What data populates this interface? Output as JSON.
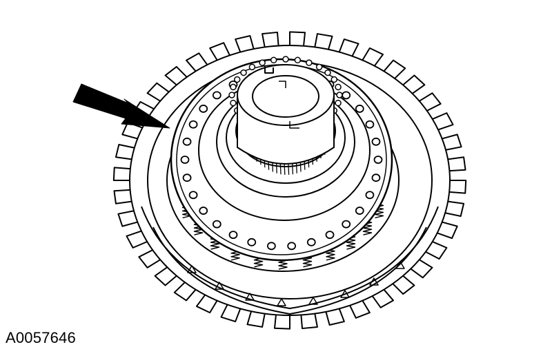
{
  "figure": {
    "id_label": "A0057646",
    "subject": "clutch-drum-assembly",
    "pointer": "callout-arrow",
    "line_color": "#000000",
    "background_color": "#ffffff"
  }
}
